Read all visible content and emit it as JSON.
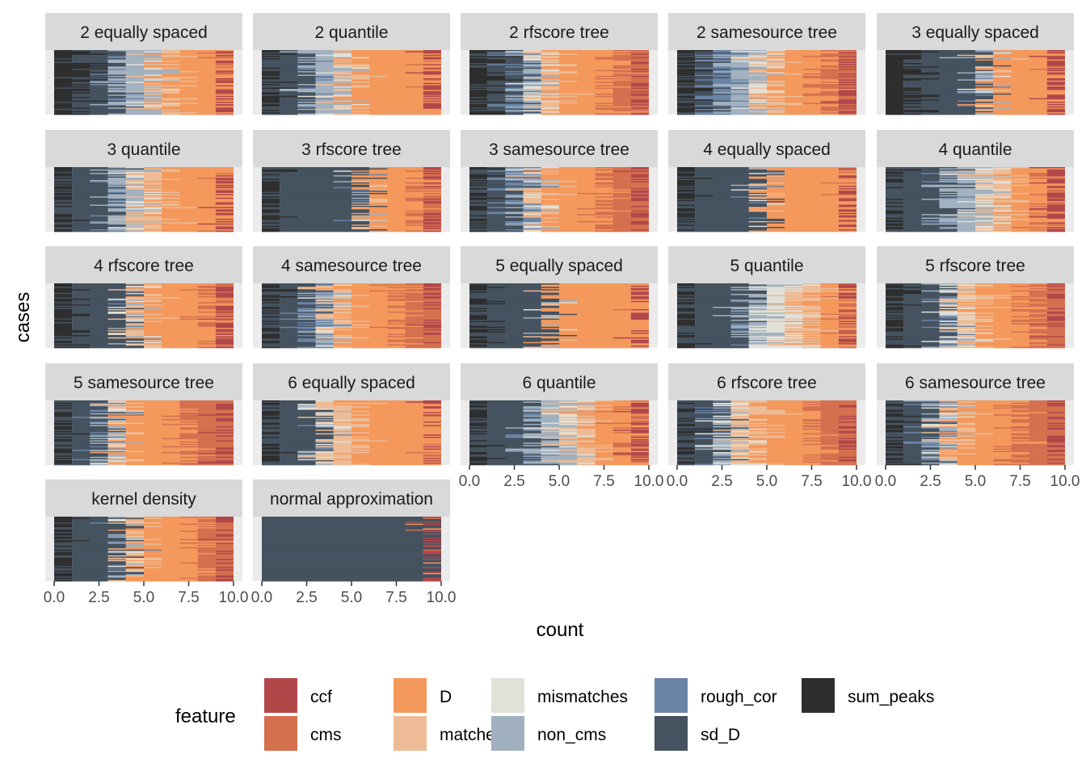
{
  "chart_data": {
    "type": "stacked-bar-facets",
    "xlabel": "count",
    "ylabel": "cases",
    "xlim": [
      0,
      10
    ],
    "x_ticks": [
      "0.0",
      "2.5",
      "5.0",
      "7.5",
      "10.0"
    ],
    "legend": {
      "title": "feature",
      "position": "bottom",
      "items": [
        {
          "name": "ccf",
          "color": "#B2474A"
        },
        {
          "name": "cms",
          "color": "#D5704F"
        },
        {
          "name": "D",
          "color": "#F4985C"
        },
        {
          "name": "matches",
          "color": "#EDBC96"
        },
        {
          "name": "mismatches",
          "color": "#E1E1DA"
        },
        {
          "name": "non_cms",
          "color": "#A2B1BF"
        },
        {
          "name": "rough_cor",
          "color": "#6A84A6"
        },
        {
          "name": "sd_D",
          "color": "#45525F"
        },
        {
          "name": "sum_peaks",
          "color": "#2E2E2E"
        }
      ]
    },
    "panels": [
      {
        "title": "2 equally spaced",
        "composition": [
          0,
          0.05,
          0.3,
          0.08,
          0.03,
          0.17,
          0.02,
          0.2,
          0.15
        ]
      },
      {
        "title": "2 quantile",
        "composition": [
          0,
          0.03,
          0.45,
          0.07,
          0.03,
          0.15,
          0.02,
          0.24,
          0.01
        ]
      },
      {
        "title": "2 rfscore tree",
        "composition": [
          0,
          0.2,
          0.3,
          0.1,
          0.04,
          0.06,
          0.05,
          0.15,
          0.1
        ]
      },
      {
        "title": "2 samesource tree",
        "composition": [
          0,
          0.18,
          0.25,
          0.1,
          0.05,
          0.12,
          0.12,
          0.13,
          0.05
        ]
      },
      {
        "title": "3 equally spaced",
        "composition": [
          0,
          0.03,
          0.38,
          0.03,
          0.02,
          0.02,
          0.01,
          0.33,
          0.18
        ]
      },
      {
        "title": "3 quantile",
        "composition": [
          0,
          0.02,
          0.38,
          0.1,
          0.04,
          0.12,
          0.02,
          0.3,
          0.02
        ]
      },
      {
        "title": "3 rfscore tree",
        "composition": [
          0,
          0.12,
          0.28,
          0.02,
          0.01,
          0.02,
          0.01,
          0.51,
          0.03
        ]
      },
      {
        "title": "3 samesource tree",
        "composition": [
          0,
          0.25,
          0.3,
          0.08,
          0.03,
          0.04,
          0.08,
          0.2,
          0.02
        ]
      },
      {
        "title": "4 equally spaced",
        "composition": [
          0,
          0.02,
          0.48,
          0.03,
          0.01,
          0.01,
          0.01,
          0.41,
          0.03
        ]
      },
      {
        "title": "4 quantile",
        "composition": [
          0.04,
          0.06,
          0.2,
          0.14,
          0.06,
          0.16,
          0.02,
          0.3,
          0.02
        ]
      },
      {
        "title": "4 rfscore tree",
        "composition": [
          0,
          0.12,
          0.36,
          0.06,
          0.02,
          0.03,
          0.01,
          0.34,
          0.06
        ]
      },
      {
        "title": "4 samesource tree",
        "composition": [
          0,
          0.22,
          0.32,
          0.08,
          0.02,
          0.04,
          0.08,
          0.23,
          0.01
        ]
      },
      {
        "title": "5 equally spaced",
        "composition": [
          0,
          0.01,
          0.52,
          0.02,
          0.01,
          0.01,
          0.0,
          0.41,
          0.02
        ]
      },
      {
        "title": "5 quantile",
        "composition": [
          0,
          0.06,
          0.2,
          0.12,
          0.12,
          0.12,
          0.02,
          0.33,
          0.03
        ]
      },
      {
        "title": "5 rfscore tree",
        "composition": [
          0,
          0.2,
          0.27,
          0.12,
          0.03,
          0.05,
          0.02,
          0.26,
          0.05
        ]
      },
      {
        "title": "5 samesource tree",
        "composition": [
          0,
          0.28,
          0.32,
          0.06,
          0.02,
          0.03,
          0.04,
          0.22,
          0.03
        ]
      },
      {
        "title": "6 equally spaced",
        "composition": [
          0,
          0.02,
          0.45,
          0.18,
          0.03,
          0.02,
          0.01,
          0.27,
          0.02
        ]
      },
      {
        "title": "6 quantile",
        "composition": [
          0.04,
          0.06,
          0.22,
          0.12,
          0.06,
          0.14,
          0.02,
          0.32,
          0.02
        ]
      },
      {
        "title": "6 rfscore tree",
        "composition": [
          0,
          0.22,
          0.3,
          0.14,
          0.04,
          0.04,
          0.02,
          0.22,
          0.02
        ]
      },
      {
        "title": "6 samesource tree",
        "composition": [
          0,
          0.28,
          0.3,
          0.08,
          0.02,
          0.03,
          0.05,
          0.22,
          0.02
        ]
      },
      {
        "title": "kernel density",
        "composition": [
          0,
          0.18,
          0.34,
          0.06,
          0.02,
          0.02,
          0.01,
          0.36,
          0.01
        ]
      },
      {
        "title": "normal approximation",
        "composition": [
          0,
          0.01,
          0.01,
          0.0,
          0.0,
          0.0,
          0.0,
          0.98,
          0.0
        ]
      }
    ]
  }
}
